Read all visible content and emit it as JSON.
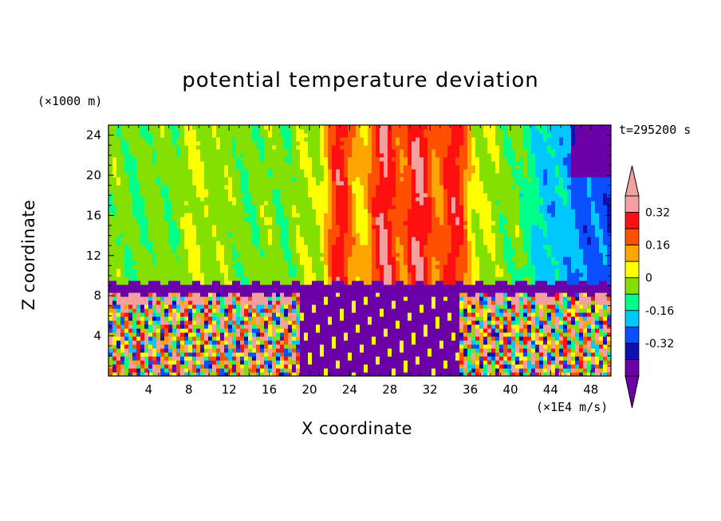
{
  "chart_data": {
    "type": "heatmap",
    "title": "potential temperature deviation",
    "xlabel": "X coordinate",
    "ylabel": "Z coordinate",
    "x_units": "(×1E4 m/s)",
    "y_units": "(×1000 m)",
    "time_label": "t=295200 s",
    "xlim": [
      0,
      50
    ],
    "ylim": [
      0,
      25
    ],
    "x_ticks": [
      4,
      8,
      12,
      16,
      20,
      24,
      28,
      32,
      36,
      40,
      44,
      48
    ],
    "y_ticks": [
      4,
      8,
      12,
      16,
      20,
      24
    ],
    "colorbar": {
      "labels": [
        "0.32",
        "0.16",
        "0",
        "-0.16",
        "-0.32"
      ],
      "label_values": [
        0.32,
        0.16,
        0,
        -0.16,
        -0.32
      ],
      "levels": [
        -0.48,
        -0.4,
        -0.32,
        -0.24,
        -0.16,
        -0.08,
        0,
        0.08,
        0.16,
        0.24,
        0.32,
        0.4
      ],
      "colors": [
        "#6b00a8",
        "#1010b0",
        "#0a50ff",
        "#00c8ff",
        "#00ff88",
        "#84e000",
        "#ffff00",
        "#ffa500",
        "#ff5000",
        "#ff1010",
        "#f4a0a0"
      ],
      "low_arrow_color": "#6b00a8",
      "high_arrow_color": "#f4a0a0"
    }
  }
}
